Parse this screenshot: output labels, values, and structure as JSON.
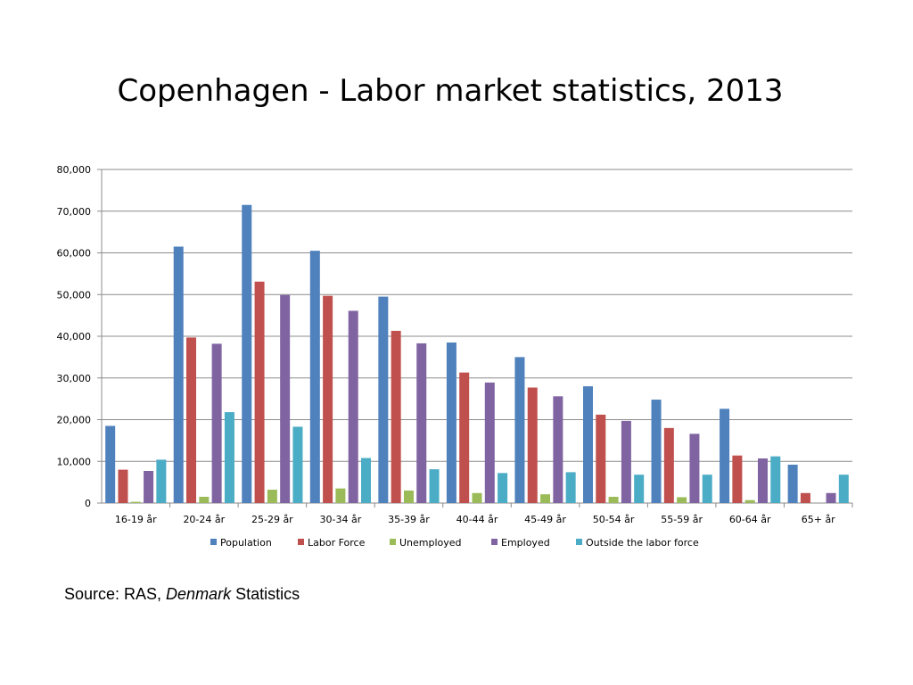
{
  "chart_data": {
    "type": "bar",
    "title": "Copenhagen - Labor market statistics, 2013",
    "xlabel": "",
    "ylabel": "",
    "ylim": [
      0,
      80000
    ],
    "yticks": [
      0,
      10000,
      20000,
      30000,
      40000,
      50000,
      60000,
      70000,
      80000
    ],
    "ytick_labels": [
      "0",
      "10,000",
      "20,000",
      "30,000",
      "40,000",
      "50,000",
      "60,000",
      "70,000",
      "80,000"
    ],
    "grid": true,
    "legend_position": "bottom",
    "categories": [
      "16-19 år",
      "20-24 år",
      "25-29 år",
      "30-34 år",
      "35-39 år",
      "40-44 år",
      "45-49 år",
      "50-54 år",
      "55-59 år",
      "60-64 år",
      "65+ år"
    ],
    "series": [
      {
        "name": "Population",
        "color": "#4f81bd",
        "values": [
          18500,
          61500,
          71500,
          60500,
          49500,
          38500,
          35000,
          28000,
          24800,
          22600,
          9200
        ]
      },
      {
        "name": "Labor Force",
        "color": "#c0504d",
        "values": [
          8000,
          39700,
          53100,
          49700,
          41300,
          31300,
          27700,
          21200,
          18000,
          11400,
          2400
        ]
      },
      {
        "name": "Unemployed",
        "color": "#9bbb59",
        "values": [
          300,
          1500,
          3200,
          3500,
          3000,
          2400,
          2100,
          1500,
          1400,
          700,
          0
        ]
      },
      {
        "name": "Employed",
        "color": "#8064a2",
        "values": [
          7700,
          38200,
          49900,
          46100,
          38300,
          28900,
          25600,
          19700,
          16600,
          10700,
          2400
        ]
      },
      {
        "name": "Outside the labor force",
        "color": "#4bacc6",
        "values": [
          10400,
          21800,
          18300,
          10800,
          8100,
          7200,
          7400,
          6800,
          6800,
          11200,
          6800
        ]
      }
    ]
  },
  "source": {
    "prefix": "Source: RAS, ",
    "italic": "Denmark",
    "suffix": " Statistics"
  }
}
